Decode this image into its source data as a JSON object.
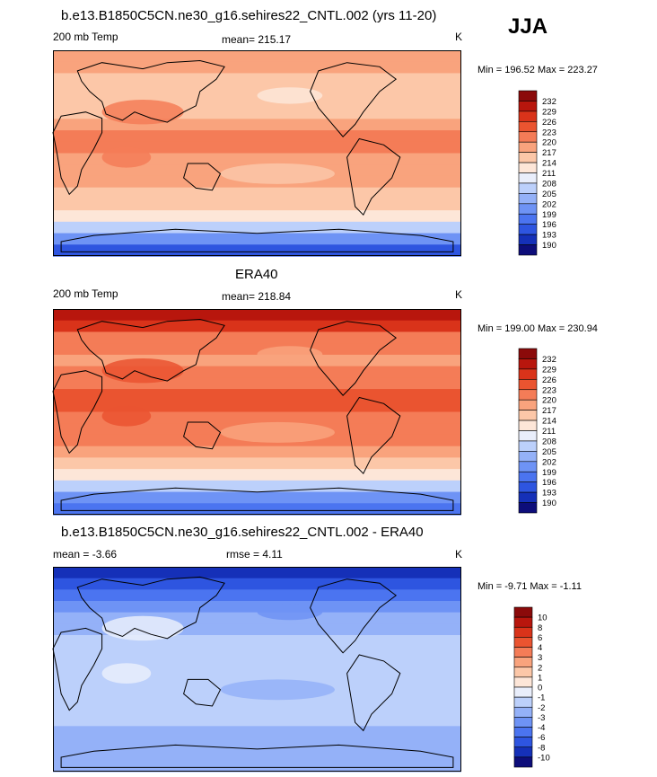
{
  "season": "JJA",
  "colors": {
    "temp_scale": [
      "#0d0d7a",
      "#1530b8",
      "#2e55e0",
      "#4b74f0",
      "#6e93f5",
      "#94b1f8",
      "#bcd0fb",
      "#e9eefb",
      "#fde6d8",
      "#fcc7a8",
      "#f9a37d",
      "#f47c57",
      "#ea5430",
      "#d9331a",
      "#b8160d",
      "#8b0a0a"
    ],
    "diff_scale": [
      "#0d0d7a",
      "#1530b8",
      "#2e55e0",
      "#4b74f0",
      "#6e93f5",
      "#94b1f8",
      "#bcd0fb",
      "#e9eefb",
      "#fde6d8",
      "#fcc7a8",
      "#f9a37d",
      "#f47c57",
      "#ea5430",
      "#d9331a",
      "#b8160d",
      "#8b0a0a"
    ]
  },
  "chart_data": [
    {
      "type": "heatmap",
      "title": "b.e13.B1850C5CN.ne30_g16.sehires22_CNTL.002 (yrs 11-20)",
      "left_label": "200 mb Temp",
      "center_label": "mean= 215.17",
      "units": "K",
      "stats_label": "Min = 196.52 Max = 223.27",
      "mean": 215.17,
      "min": 196.52,
      "max": 223.27,
      "legend_levels": [
        "232",
        "229",
        "226",
        "223",
        "220",
        "217",
        "214",
        "211",
        "208",
        "205",
        "202",
        "199",
        "196",
        "193",
        "190"
      ],
      "lat_profile": [
        196,
        201,
        206,
        211,
        214,
        216,
        217.5,
        218,
        219,
        220.5,
        220,
        218,
        216,
        215,
        214,
        215,
        217,
        218
      ]
    },
    {
      "type": "heatmap",
      "title": "ERA40",
      "left_label": "200 mb Temp",
      "center_label": "mean= 218.84",
      "units": "K",
      "stats_label": "Min = 199.00 Max = 230.94",
      "mean": 218.84,
      "min": 199.0,
      "max": 230.94,
      "legend_levels": [
        "232",
        "229",
        "226",
        "223",
        "220",
        "217",
        "214",
        "211",
        "208",
        "205",
        "202",
        "199",
        "196",
        "193",
        "190"
      ],
      "lat_profile": [
        199,
        202,
        207,
        212,
        216,
        219,
        220,
        221,
        222,
        223,
        223,
        222,
        220,
        219,
        220,
        222,
        226,
        230
      ]
    },
    {
      "type": "heatmap",
      "title": "b.e13.B1850C5CN.ne30_g16.sehires22_CNTL.002 - ERA40",
      "left_label": "mean =  -3.66",
      "center_label": "rmse =   4.11",
      "units": "K",
      "stats_label": "Min =  -9.71 Max =  -1.11",
      "mean": -3.66,
      "rmse": 4.11,
      "min": -9.71,
      "max": -1.11,
      "legend_levels": [
        "10",
        "8",
        "6",
        "4",
        "3",
        "2",
        "1",
        "0",
        "-1",
        "-2",
        "-3",
        "-4",
        "-6",
        "-8",
        "-10"
      ],
      "lat_profile": [
        -4,
        -3.5,
        -4,
        -3,
        -2.5,
        -2,
        -2.5,
        -2,
        -1.5,
        -1.5,
        -2,
        -2.5,
        -3,
        -3.5,
        -5,
        -6,
        -8,
        -9
      ]
    }
  ]
}
